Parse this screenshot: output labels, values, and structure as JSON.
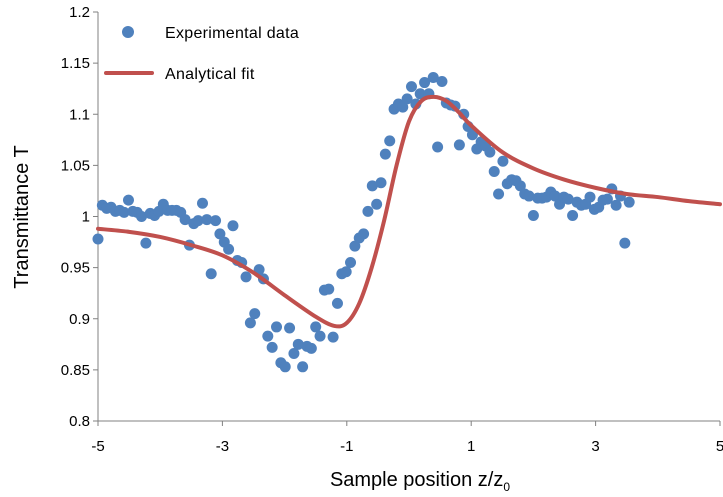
{
  "chart_data": {
    "type": "scatter",
    "xlabel": "Sample position z/z",
    "xlabel_subscript": "0",
    "ylabel": "Transmittance T",
    "xlim": [
      -5,
      5
    ],
    "ylim": [
      0.8,
      1.2
    ],
    "x_ticks": [
      -5,
      -3,
      -1,
      1,
      3,
      5
    ],
    "y_ticks": [
      0.8,
      0.85,
      0.9,
      0.95,
      1,
      1.05,
      1.1,
      1.15,
      1.2
    ],
    "x_tick_labels": [
      "-5",
      "-3",
      "-1",
      "1",
      "3",
      "5"
    ],
    "y_tick_labels": [
      "0.8",
      "0.85",
      "0.9",
      "0.95",
      "1",
      "1.05",
      "1.1",
      "1.15",
      "1.2"
    ],
    "grid": false,
    "legend_position": "top-left",
    "series": [
      {
        "name": "Experimental data",
        "kind": "scatter",
        "color": "#4F81BD",
        "points": [
          [
            -5.0,
            0.978
          ],
          [
            -4.93,
            1.011
          ],
          [
            -4.86,
            1.008
          ],
          [
            -4.79,
            1.009
          ],
          [
            -4.72,
            1.005
          ],
          [
            -4.65,
            1.006
          ],
          [
            -4.58,
            1.004
          ],
          [
            -4.51,
            1.016
          ],
          [
            -4.44,
            1.005
          ],
          [
            -4.37,
            1.004
          ],
          [
            -4.3,
            1.0
          ],
          [
            -4.23,
            0.974
          ],
          [
            -4.16,
            1.003
          ],
          [
            -4.09,
            1.001
          ],
          [
            -4.02,
            1.005
          ],
          [
            -3.95,
            1.012
          ],
          [
            -3.88,
            1.006
          ],
          [
            -3.81,
            1.006
          ],
          [
            -3.74,
            1.006
          ],
          [
            -3.67,
            1.004
          ],
          [
            -3.6,
            0.997
          ],
          [
            -3.53,
            0.972
          ],
          [
            -3.46,
            0.993
          ],
          [
            -3.39,
            0.996
          ],
          [
            -3.32,
            1.013
          ],
          [
            -3.25,
            0.997
          ],
          [
            -3.18,
            0.944
          ],
          [
            -3.11,
            0.996
          ],
          [
            -3.04,
            0.983
          ],
          [
            -2.97,
            0.975
          ],
          [
            -2.9,
            0.968
          ],
          [
            -2.83,
            0.991
          ],
          [
            -2.76,
            0.957
          ],
          [
            -2.69,
            0.955
          ],
          [
            -2.62,
            0.941
          ],
          [
            -2.55,
            0.896
          ],
          [
            -2.48,
            0.905
          ],
          [
            -2.41,
            0.948
          ],
          [
            -2.34,
            0.939
          ],
          [
            -2.27,
            0.883
          ],
          [
            -2.2,
            0.872
          ],
          [
            -2.13,
            0.892
          ],
          [
            -2.06,
            0.857
          ],
          [
            -1.99,
            0.853
          ],
          [
            -1.92,
            0.891
          ],
          [
            -1.85,
            0.866
          ],
          [
            -1.78,
            0.875
          ],
          [
            -1.71,
            0.853
          ],
          [
            -1.64,
            0.873
          ],
          [
            -1.57,
            0.871
          ],
          [
            -1.5,
            0.892
          ],
          [
            -1.43,
            0.883
          ],
          [
            -1.36,
            0.928
          ],
          [
            -1.29,
            0.929
          ],
          [
            -1.22,
            0.882
          ],
          [
            -1.15,
            0.915
          ],
          [
            -1.08,
            0.944
          ],
          [
            -1.01,
            0.946
          ],
          [
            -0.94,
            0.955
          ],
          [
            -0.87,
            0.971
          ],
          [
            -0.8,
            0.979
          ],
          [
            -0.73,
            0.983
          ],
          [
            -0.66,
            1.005
          ],
          [
            -0.59,
            1.03
          ],
          [
            -0.52,
            1.012
          ],
          [
            -0.45,
            1.033
          ],
          [
            -0.38,
            1.061
          ],
          [
            -0.31,
            1.074
          ],
          [
            -0.24,
            1.105
          ],
          [
            -0.17,
            1.11
          ],
          [
            -0.1,
            1.107
          ],
          [
            -0.03,
            1.115
          ],
          [
            0.04,
            1.127
          ],
          [
            0.11,
            1.11
          ],
          [
            0.18,
            1.12
          ],
          [
            0.25,
            1.131
          ],
          [
            0.32,
            1.12
          ],
          [
            0.39,
            1.136
          ],
          [
            0.46,
            1.068
          ],
          [
            0.53,
            1.132
          ],
          [
            0.6,
            1.111
          ],
          [
            0.67,
            1.109
          ],
          [
            0.74,
            1.108
          ],
          [
            0.81,
            1.07
          ],
          [
            0.88,
            1.1
          ],
          [
            0.95,
            1.088
          ],
          [
            1.02,
            1.08
          ],
          [
            1.09,
            1.066
          ],
          [
            1.16,
            1.073
          ],
          [
            1.23,
            1.069
          ],
          [
            1.3,
            1.063
          ],
          [
            1.37,
            1.044
          ],
          [
            1.44,
            1.022
          ],
          [
            1.51,
            1.054
          ],
          [
            1.58,
            1.032
          ],
          [
            1.65,
            1.036
          ],
          [
            1.72,
            1.035
          ],
          [
            1.79,
            1.03
          ],
          [
            1.86,
            1.022
          ],
          [
            1.93,
            1.02
          ],
          [
            2.0,
            1.001
          ],
          [
            2.07,
            1.018
          ],
          [
            2.14,
            1.018
          ],
          [
            2.21,
            1.019
          ],
          [
            2.28,
            1.024
          ],
          [
            2.35,
            1.02
          ],
          [
            2.42,
            1.012
          ],
          [
            2.49,
            1.019
          ],
          [
            2.56,
            1.017
          ],
          [
            2.63,
            1.001
          ],
          [
            2.7,
            1.014
          ],
          [
            2.77,
            1.011
          ],
          [
            2.84,
            1.012
          ],
          [
            2.91,
            1.019
          ],
          [
            2.98,
            1.007
          ],
          [
            3.05,
            1.009
          ],
          [
            3.12,
            1.016
          ],
          [
            3.19,
            1.017
          ],
          [
            3.26,
            1.027
          ],
          [
            3.33,
            1.011
          ],
          [
            3.4,
            1.02
          ],
          [
            3.47,
            0.974
          ],
          [
            3.54,
            1.014
          ]
        ]
      },
      {
        "name": "Analytical fit",
        "kind": "line",
        "color": "#C0504D",
        "points": [
          [
            -5.0,
            0.988
          ],
          [
            -4.5,
            0.985
          ],
          [
            -4.0,
            0.98
          ],
          [
            -3.5,
            0.972
          ],
          [
            -3.0,
            0.962
          ],
          [
            -2.5,
            0.945
          ],
          [
            -2.0,
            0.923
          ],
          [
            -1.5,
            0.902
          ],
          [
            -1.2,
            0.893
          ],
          [
            -1.0,
            0.896
          ],
          [
            -0.8,
            0.915
          ],
          [
            -0.6,
            0.95
          ],
          [
            -0.4,
            0.996
          ],
          [
            -0.2,
            1.05
          ],
          [
            0.0,
            1.093
          ],
          [
            0.2,
            1.113
          ],
          [
            0.4,
            1.117
          ],
          [
            0.6,
            1.113
          ],
          [
            0.8,
            1.102
          ],
          [
            1.0,
            1.089
          ],
          [
            1.5,
            1.063
          ],
          [
            2.0,
            1.047
          ],
          [
            2.5,
            1.036
          ],
          [
            3.0,
            1.028
          ],
          [
            3.5,
            1.022
          ],
          [
            4.0,
            1.019
          ],
          [
            4.5,
            1.015
          ],
          [
            5.0,
            1.012
          ]
        ]
      }
    ]
  }
}
